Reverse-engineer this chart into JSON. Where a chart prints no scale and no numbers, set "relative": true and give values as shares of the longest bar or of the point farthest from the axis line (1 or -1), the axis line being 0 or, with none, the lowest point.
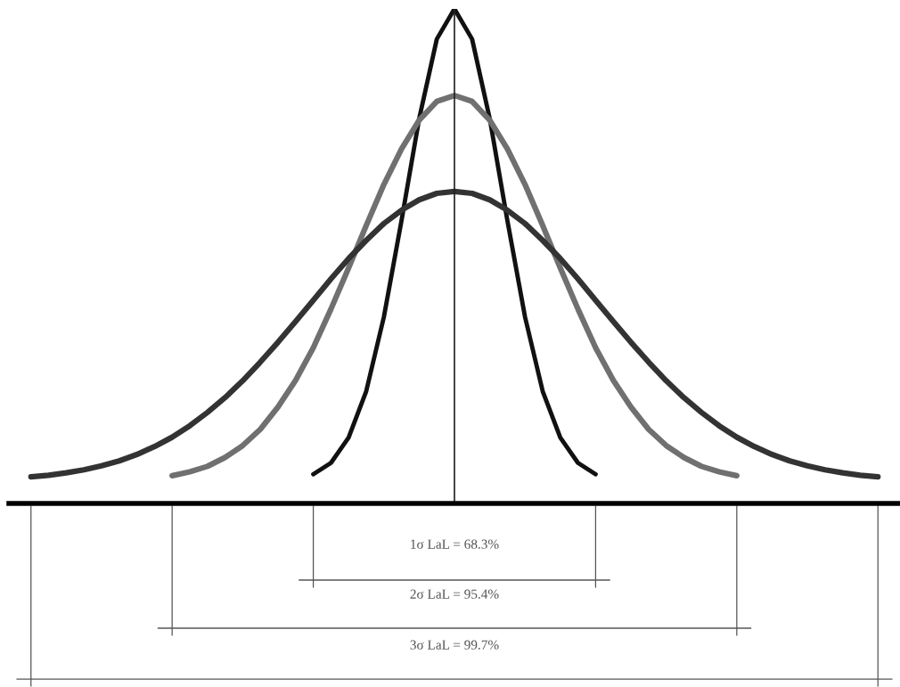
{
  "chart_data": {
    "type": "line",
    "relative": true,
    "categories": [
      null,
      null,
      null,
      null,
      null,
      null,
      null,
      null,
      null,
      null,
      null,
      null,
      null,
      null,
      null,
      null,
      null,
      null,
      null,
      null,
      null,
      null,
      null,
      null,
      null,
      null,
      null,
      null,
      null,
      null,
      null,
      null,
      null,
      null,
      null,
      null,
      null,
      null,
      null,
      null,
      null,
      null,
      null,
      null,
      null,
      null,
      null,
      null,
      null
    ],
    "series": [
      {
        "color": "#111111",
        "values": [
          null,
          null,
          null,
          null,
          null,
          null,
          null,
          null,
          null,
          null,
          null,
          null,
          null,
          null,
          null,
          null,
          0.059,
          0.082,
          0.133,
          0.227,
          0.377,
          0.572,
          0.778,
          0.939,
          1.0,
          0.939,
          0.778,
          0.572,
          0.377,
          0.227,
          0.133,
          0.082,
          0.059,
          null,
          null,
          null,
          null,
          null,
          null,
          null,
          null,
          null,
          null,
          null,
          null,
          null,
          null,
          null,
          null
        ]
      },
      {
        "color": "#707070",
        "values": [
          null,
          null,
          null,
          null,
          null,
          null,
          null,
          null,
          0.056,
          0.064,
          0.075,
          0.093,
          0.117,
          0.15,
          0.195,
          0.249,
          0.315,
          0.393,
          0.476,
          0.562,
          0.645,
          0.717,
          0.775,
          0.813,
          0.825,
          0.813,
          0.775,
          0.717,
          0.645,
          0.562,
          0.476,
          0.393,
          0.315,
          0.249,
          0.195,
          0.15,
          0.117,
          0.093,
          0.075,
          0.064,
          0.056,
          null,
          null,
          null,
          null,
          null,
          null,
          null,
          null
        ]
      },
      {
        "color": "#333333",
        "values": [
          0.054,
          0.057,
          0.062,
          0.068,
          0.076,
          0.086,
          0.099,
          0.115,
          0.134,
          0.157,
          0.184,
          0.214,
          0.248,
          0.286,
          0.326,
          0.368,
          0.411,
          0.454,
          0.495,
          0.532,
          0.566,
          0.593,
          0.614,
          0.627,
          0.631,
          0.627,
          0.614,
          0.593,
          0.566,
          0.532,
          0.495,
          0.454,
          0.411,
          0.368,
          0.326,
          0.286,
          0.248,
          0.214,
          0.184,
          0.157,
          0.134,
          0.115,
          0.099,
          0.086,
          0.076,
          0.068,
          0.062,
          0.057,
          0.054
        ]
      }
    ],
    "line_style": "solid",
    "marker": "none",
    "annotations": [
      "1σ LaL = 68.3%",
      "2σ LaL = 95.4%",
      "3σ LaL = 99.7%"
    ]
  }
}
